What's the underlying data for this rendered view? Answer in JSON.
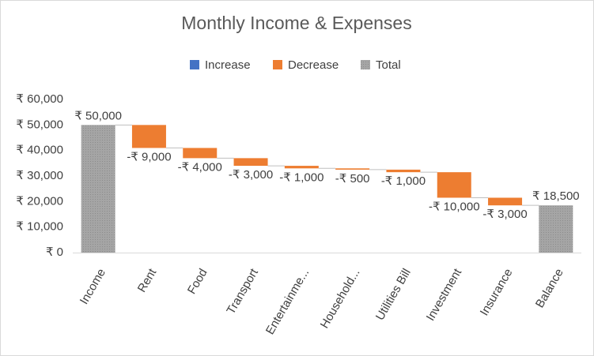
{
  "chart_data": {
    "type": "waterfall",
    "title": "Monthly Income & Expenses",
    "categories": [
      "Income",
      "Rent",
      "Food",
      "Transport",
      "Entertainme...",
      "Household...",
      "Utilities Bill",
      "Investment",
      "Insurance",
      "Balance"
    ],
    "values": [
      50000,
      -9000,
      -4000,
      -3000,
      -1000,
      -500,
      -1000,
      -10000,
      -3000,
      18500
    ],
    "value_labels": [
      "₹ 50,000",
      "-₹ 9,000",
      "-₹ 4,000",
      "-₹ 3,000",
      "-₹ 1,000",
      "-₹ 500",
      "-₹ 1,000",
      "-₹ 10,000",
      "-₹ 3,000",
      "₹ 18,500"
    ],
    "totals": [
      0,
      9
    ],
    "legend": [
      {
        "name": "Increase",
        "color": "#4472c4"
      },
      {
        "name": "Decrease",
        "color": "#ed7d31"
      },
      {
        "name": "Total",
        "color": "#a5a5a5"
      }
    ],
    "ylim": [
      0,
      60000
    ],
    "yticks": [
      {
        "value": 0,
        "label": "₹ 0"
      },
      {
        "value": 10000,
        "label": "₹ 10,000"
      },
      {
        "value": 20000,
        "label": "₹ 20,000"
      },
      {
        "value": 30000,
        "label": "₹ 30,000"
      },
      {
        "value": 40000,
        "label": "₹ 40,000"
      },
      {
        "value": 50000,
        "label": "₹ 50,000"
      },
      {
        "value": 60000,
        "label": "₹ 60,000"
      }
    ],
    "grid": false
  }
}
